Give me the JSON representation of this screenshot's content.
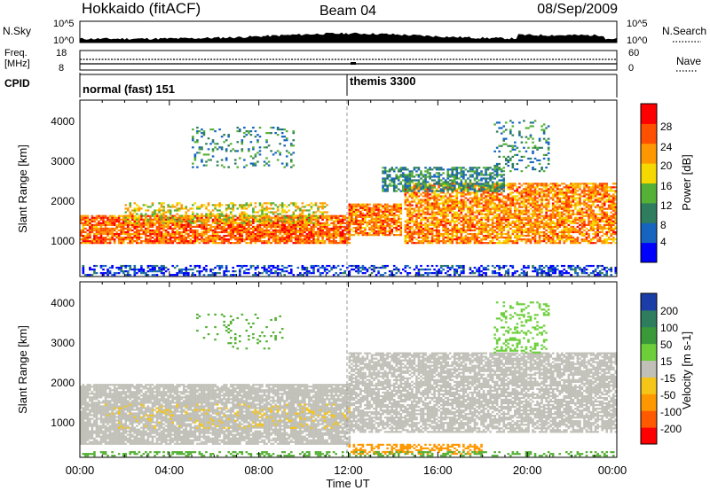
{
  "header": {
    "station": "Hokkaido (fitACF)",
    "beam": "Beam 04",
    "date": "08/Sep/2009"
  },
  "strip_panels": {
    "nsky": {
      "label": "N.Sky",
      "tick_top": "10^5",
      "tick_bottom": "10^0",
      "right_label": "N.Search"
    },
    "freq": {
      "label_line1": "Freq.",
      "label_line2": "[MHz]",
      "tick_top": "18",
      "tick_bottom": "8",
      "right_tick_top": "60",
      "right_tick_bottom": "0",
      "right_label": "Nave"
    },
    "cpid": {
      "label": "CPID",
      "modes": [
        {
          "name": "normal (fast) 151",
          "start_hour": 0
        },
        {
          "name": "themis 3300",
          "start_hour": 12
        }
      ]
    }
  },
  "power_panel": {
    "ylabel": "Slant Range [km]",
    "yticks": [
      "1000",
      "2000",
      "3000",
      "4000"
    ],
    "colorbar_label": "Power [dB]",
    "colorbar_ticks": [
      "4",
      "8",
      "12",
      "16",
      "20",
      "24",
      "28"
    ],
    "colorbar_colors": [
      "#0000ff",
      "#1565c0",
      "#2e7d5e",
      "#55b036",
      "#f5d800",
      "#ff9800",
      "#ff5000",
      "#ff0000"
    ]
  },
  "velocity_panel": {
    "ylabel": "Slant Range [km]",
    "yticks": [
      "1000",
      "2000",
      "3000",
      "4000"
    ],
    "colorbar_label": "Velocity [m s-1]",
    "colorbar_ticks": [
      "200",
      "100",
      "50",
      "15",
      "-15",
      "-50",
      "-100",
      "-200"
    ],
    "colorbar_colors": [
      "#1a3da8",
      "#2e7d5e",
      "#3a9a3a",
      "#6ccf3a",
      "#c0c0b8",
      "#f5c518",
      "#ff9800",
      "#ff5a00",
      "#ff0000"
    ]
  },
  "xaxis": {
    "label": "Time UT",
    "ticks": [
      "00:00",
      "04:00",
      "08:00",
      "12:00",
      "16:00",
      "20:00",
      "00:00"
    ]
  },
  "chart_data": [
    {
      "type": "heatmap",
      "title": "Power",
      "xlabel": "Time UT",
      "ylabel": "Slant Range [km]",
      "xlim": [
        0,
        24
      ],
      "ylim": [
        180,
        4600
      ],
      "colorbar": {
        "label": "Power [dB]",
        "range": [
          0,
          30
        ]
      },
      "features": [
        {
          "name": "",
          "hours": [
            0,
            11.9
          ],
          "range_km": [
            1000,
            1700
          ],
          "value_db": 26
        },
        {
          "name": "",
          "hours": [
            12,
            14.3
          ],
          "range_km": [
            1200,
            2000
          ],
          "value_db": 25
        },
        {
          "name": "",
          "hours": [
            14.5,
            24
          ],
          "range_km": [
            1000,
            2500
          ],
          "value_db": 24
        },
        {
          "name": "",
          "hours": [
            5,
            9.5
          ],
          "range_km": [
            2900,
            3900
          ],
          "value_db": 10
        }
      ]
    },
    {
      "type": "heatmap",
      "title": "Velocity",
      "xlabel": "Time UT",
      "ylabel": "Slant Range [km]",
      "xlim": [
        0,
        24
      ],
      "ylim": [
        180,
        4600
      ],
      "colorbar": {
        "label": "Velocity [m s-1]",
        "range": [
          -200,
          200
        ]
      },
      "features": [
        {
          "name": "",
          "hours": [
            0,
            12
          ],
          "range_km": [
            500,
            2000
          ],
          "value_ms": 0
        },
        {
          "name": "",
          "hours": [
            12,
            24
          ],
          "range_km": [
            800,
            2800
          ],
          "value_ms": 0
        },
        {
          "name": "",
          "hours": [
            12,
            18
          ],
          "range_km": [
            250,
            500
          ],
          "value_ms": -60
        }
      ]
    }
  ]
}
